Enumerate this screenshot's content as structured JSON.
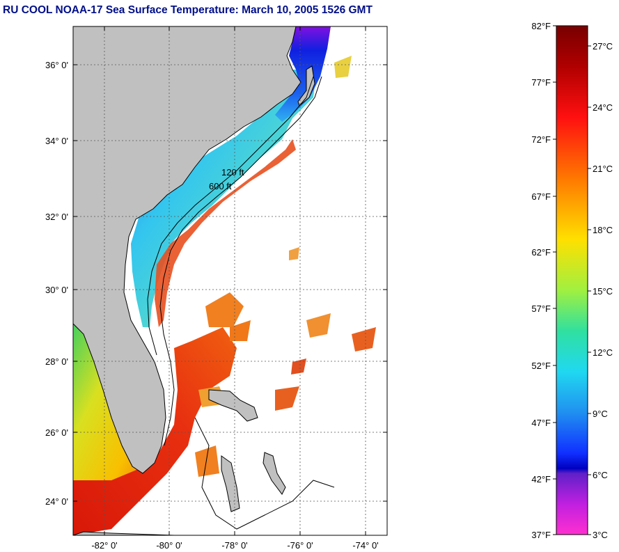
{
  "title": "RU COOL  NOAA-17  Sea Surface Temperature:  March 10, 2005 1526 GMT",
  "map": {
    "lat_labels": [
      "36° 0'",
      "34° 0'",
      "32° 0'",
      "30° 0'",
      "28° 0'",
      "26° 0'",
      "24° 0'"
    ],
    "lon_labels": [
      "-82° 0'",
      "-80° 0'",
      "-78° 0'",
      "-76° 0'",
      "-74° 0'"
    ],
    "contour_labels": [
      "120 ft",
      "600 ft"
    ],
    "colors": {
      "land": "#c0c0c0",
      "ocean_nodata": "#ffffff",
      "cold_water": "#1040e0",
      "shelf_water": "#30c8e8",
      "warm_water": "#e03010",
      "gulf_water": "#f0c000"
    }
  },
  "colorbar": {
    "fahrenheit_labels": [
      "82°F",
      "77°F",
      "72°F",
      "67°F",
      "62°F",
      "57°F",
      "52°F",
      "47°F",
      "42°F",
      "37°F"
    ],
    "celsius_labels": [
      "27°C",
      "24°C",
      "21°C",
      "18°C",
      "15°C",
      "12°C",
      "9°C",
      "6°C",
      "3°C"
    ]
  }
}
